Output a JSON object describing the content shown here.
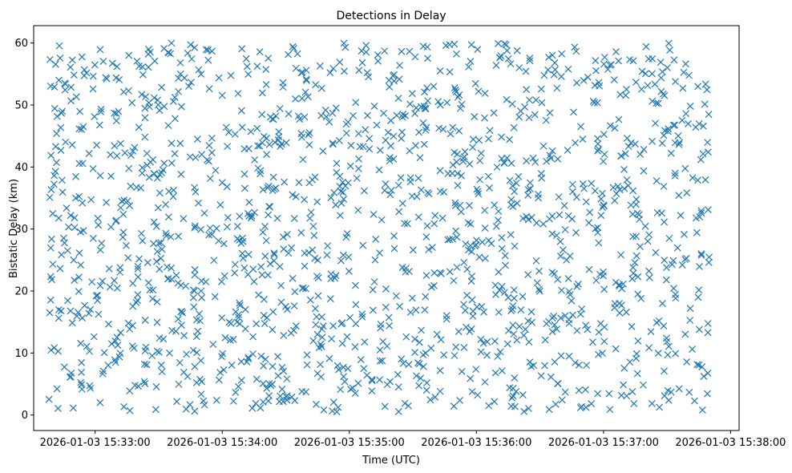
{
  "chart_data": {
    "type": "scatter",
    "title": "Detections in Delay",
    "xlabel": "Time (UTC)",
    "ylabel": "Bistatic Delay (km)",
    "marker": "x",
    "marker_color": "#1f77b4",
    "x_ticks": [
      "2026-01-03 15:33:00",
      "2026-01-03 15:34:00",
      "2026-01-03 15:35:00",
      "2026-01-03 15:36:00",
      "2026-01-03 15:37:00",
      "2026-01-03 15:38:00"
    ],
    "y_ticks": [
      0,
      10,
      20,
      30,
      40,
      50,
      60
    ],
    "xlim_seconds_from_15_33_00": [
      -29.0,
      304.0
    ],
    "ylim": [
      -2.5,
      62.8
    ],
    "grid": false,
    "series": [
      {
        "name": "Detections",
        "points_per_second": 5,
        "t_range_seconds_from_15_33_00": [
          -22,
          290
        ],
        "delay_range_km": [
          0.5,
          60
        ],
        "note": "~1560 detections scattered uniformly over the range (generated with fixed seed)"
      }
    ]
  }
}
